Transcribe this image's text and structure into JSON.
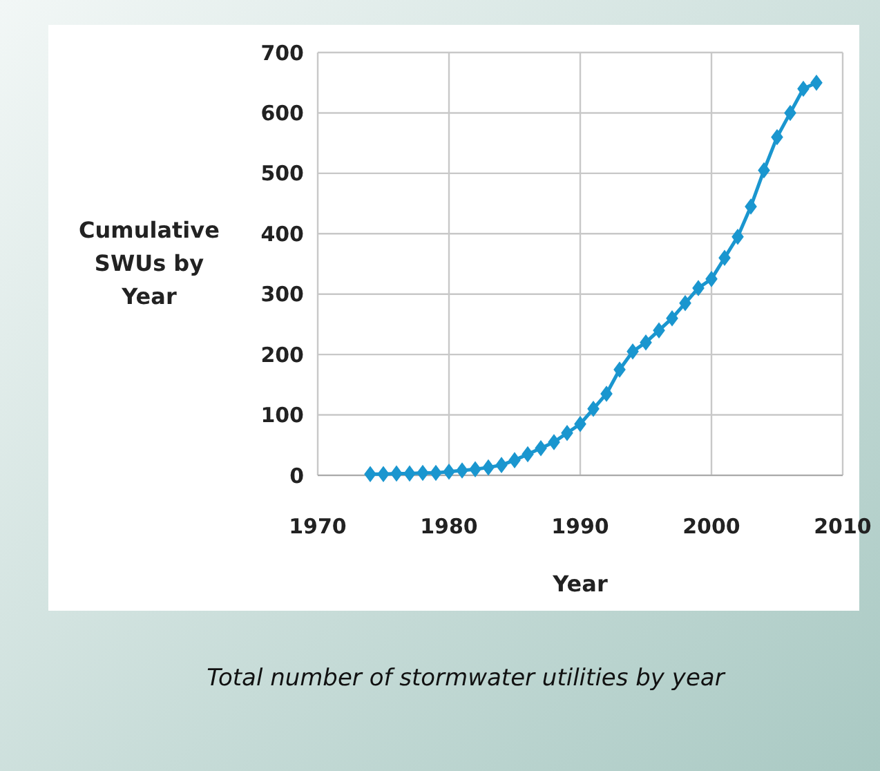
{
  "chart_data": {
    "type": "line",
    "xlabel": "Year",
    "ylabel": "Cumulative SWUs by Year",
    "x": [
      1974,
      1975,
      1976,
      1977,
      1978,
      1979,
      1980,
      1981,
      1982,
      1983,
      1984,
      1985,
      1986,
      1987,
      1988,
      1989,
      1990,
      1991,
      1992,
      1993,
      1994,
      1995,
      1996,
      1997,
      1998,
      1999,
      2000,
      2001,
      2002,
      2003,
      2004,
      2005,
      2006,
      2007,
      2008
    ],
    "series": [
      {
        "color": "#1a96cf",
        "values": [
          2,
          2,
          3,
          3,
          4,
          4,
          6,
          8,
          10,
          13,
          17,
          25,
          35,
          45,
          55,
          70,
          85,
          110,
          135,
          175,
          205,
          220,
          240,
          260,
          285,
          310,
          325,
          360,
          395,
          445,
          505,
          560,
          600,
          640,
          650
        ]
      }
    ],
    "xlim": [
      1970,
      2010
    ],
    "xticks": [
      1970,
      1980,
      1990,
      2000,
      2010
    ],
    "ylim": [
      0,
      700
    ],
    "yticks": [
      0,
      100,
      200,
      300,
      400,
      500,
      600,
      700
    ],
    "grid": true,
    "marker": "diamond",
    "line_style": "solid",
    "annotations": [
      "Total number of stormwater utilities by year"
    ]
  }
}
